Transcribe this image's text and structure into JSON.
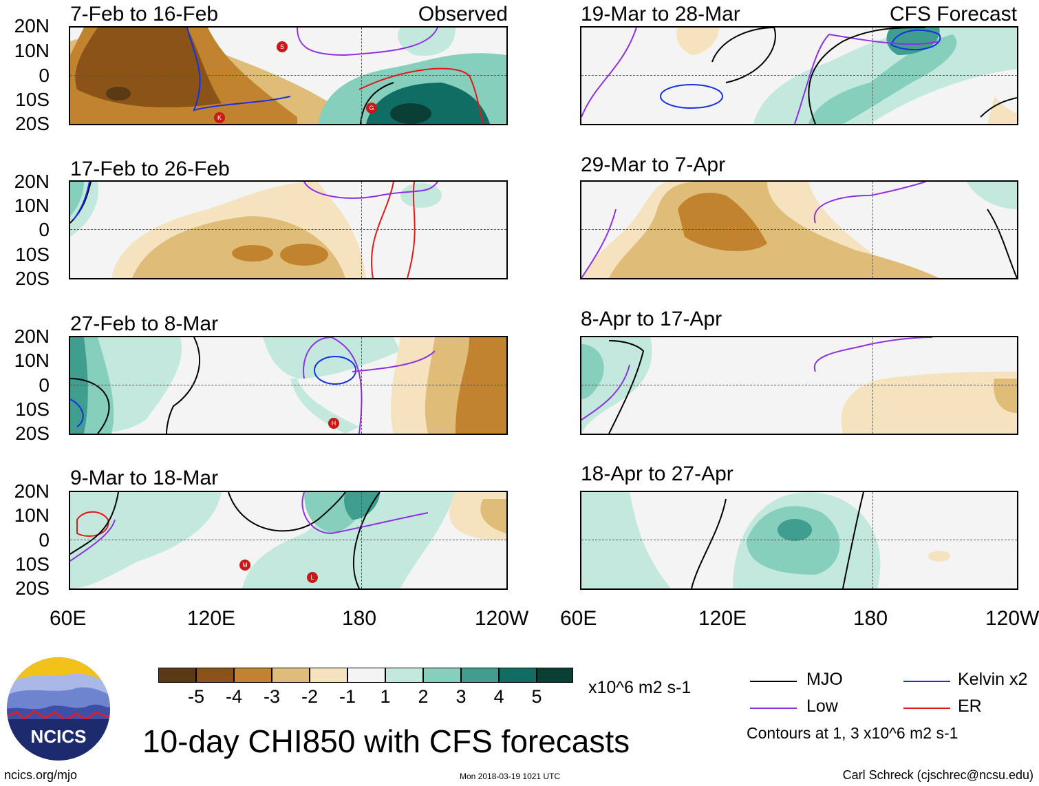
{
  "left_panels": [
    {
      "title": "7-Feb to 16-Feb",
      "tag": "Observed"
    },
    {
      "title": "17-Feb to 26-Feb",
      "tag": ""
    },
    {
      "title": "27-Feb to 8-Mar",
      "tag": ""
    },
    {
      "title": "9-Mar to 18-Mar",
      "tag": ""
    }
  ],
  "right_panels": [
    {
      "title": "19-Mar to 28-Mar",
      "tag": "CFS Forecast"
    },
    {
      "title": "29-Mar to 7-Apr",
      "tag": ""
    },
    {
      "title": "8-Apr to 17-Apr",
      "tag": ""
    },
    {
      "title": "18-Apr to 27-Apr",
      "tag": ""
    }
  ],
  "lat_labels": [
    "20N",
    "10N",
    "0",
    "10S",
    "20S"
  ],
  "lon_labels": [
    "60E",
    "120E",
    "180",
    "120W"
  ],
  "storm_markers": [
    "S",
    "K",
    "G",
    "H",
    "M",
    "L"
  ],
  "colorbar": {
    "colors": [
      "#5a3a14",
      "#8a5418",
      "#c2832f",
      "#dfbd79",
      "#f5e3bf",
      "#f4f4f4",
      "#c3e9df",
      "#86cfbd",
      "#3f9e8f",
      "#0f6d63",
      "#0a3f36"
    ],
    "labels": [
      "-5",
      "-4",
      "-3",
      "-2",
      "-1",
      "1",
      "2",
      "3",
      "4",
      "5"
    ],
    "units": "x10^6 m2 s-1"
  },
  "legend": {
    "items": [
      {
        "label": "MJO",
        "color": "#000000"
      },
      {
        "label": "Kelvin x2",
        "color": "#1530e0"
      },
      {
        "label": "Low",
        "color": "#9030e0"
      },
      {
        "label": "ER",
        "color": "#e01818"
      }
    ],
    "note": "Contours at 1, 3 x10^6 m2 s-1"
  },
  "logo_text": "NCICS",
  "main_title": "10-day CHI850 with CFS forecasts",
  "footer": {
    "left": "ncics.org/mjo",
    "center": "Mon 2018-03-19 1021 UTC",
    "right": "Carl Schreck (cjschrec@ncsu.edu)"
  }
}
